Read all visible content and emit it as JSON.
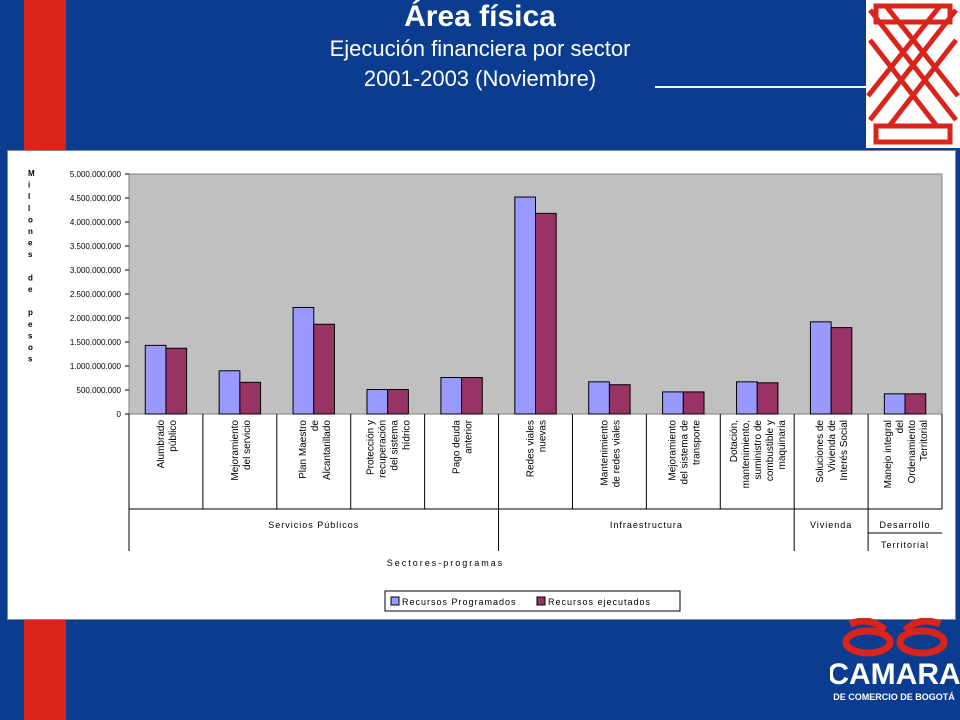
{
  "header": {
    "title": "Área física",
    "subtitle_line1": "Ejecución financiera por sector",
    "subtitle_line2": "2001-2003 (Noviembre)"
  },
  "logo": {
    "name": "CAMARA",
    "sub": "DE COMERCIO DE BOGOTÁ"
  },
  "colors": {
    "background": "#0a3d8f",
    "band": "#d9231b",
    "programados": "#9999ff",
    "ejecutados": "#993366",
    "plot_bg": "#c0c0c0"
  },
  "chart_data": {
    "type": "bar",
    "ylabel": "Millones de pesos",
    "xlabel": "Sectores-programas",
    "ylim": [
      0,
      5000000000
    ],
    "yticks": [
      "0",
      "500.000.000",
      "1.000.000.000",
      "1.500.000.000",
      "2.000.000.000",
      "2.500.000.000",
      "3.000.000.000",
      "3.500.000.000",
      "4.000.000.000",
      "4.500.000.000",
      "5.000.000.000"
    ],
    "categories": [
      "Alumbrado público",
      "Mejoramiento del servicio",
      "Plan Maestro de Alcantarillado",
      "Protección y recuperación del sistema hídrico",
      "Pago deuda anterior",
      "Redes viales nuevas",
      "Mantenimiento de redes viales",
      "Mejoramiento del sistema de transporte",
      "Dotación, mantenimiento, suministro de combustible y maquinaria",
      "Soluciones de Vivienda de Interés Social",
      "Manejo integral del Ordenamiento Territorial"
    ],
    "category_lines": [
      [
        "Alumbrado",
        "público"
      ],
      [
        "Mejoramiento",
        "del servicio"
      ],
      [
        "Plan Maestro",
        "de",
        "Alcantarillado"
      ],
      [
        "Protección y",
        "recuperación",
        "del sistema",
        "hídrico"
      ],
      [
        "Pago deuda",
        "anterior"
      ],
      [
        "Redes viales",
        "nuevas"
      ],
      [
        "Mantenimiento",
        "de redes viales"
      ],
      [
        "Mejoramiento",
        "del sistema de",
        "transporte"
      ],
      [
        "Dotación,",
        "mantenimiento,",
        "suministro de",
        "combustible y",
        "maquinaria"
      ],
      [
        "Soluciones de",
        "Vivienda de",
        "Interés Social"
      ],
      [
        "Manejo integral",
        "del",
        "Ordenamiento",
        "Territorial"
      ]
    ],
    "groups": [
      {
        "name": "Servicios Públicos",
        "label": "Servicios Públicos",
        "count": 5
      },
      {
        "name": "Infraestructura",
        "label": "Infraestructura",
        "count": 4
      },
      {
        "name": "Vivienda",
        "label": "Vivienda",
        "count": 1
      },
      {
        "name": "Desarrollo Territorial",
        "label": "Desarrollo",
        "label2": "Territorial",
        "count": 1
      }
    ],
    "series": [
      {
        "name": "Recursos Programados",
        "values": [
          1430000000,
          900000000,
          2220000000,
          510000000,
          760000000,
          4520000000,
          670000000,
          460000000,
          670000000,
          1920000000,
          420000000
        ]
      },
      {
        "name": "Recursos ejecutados",
        "values": [
          1370000000,
          660000000,
          1870000000,
          510000000,
          760000000,
          4180000000,
          610000000,
          460000000,
          650000000,
          1800000000,
          420000000
        ]
      }
    ],
    "legend_position": "bottom",
    "grid": false
  }
}
